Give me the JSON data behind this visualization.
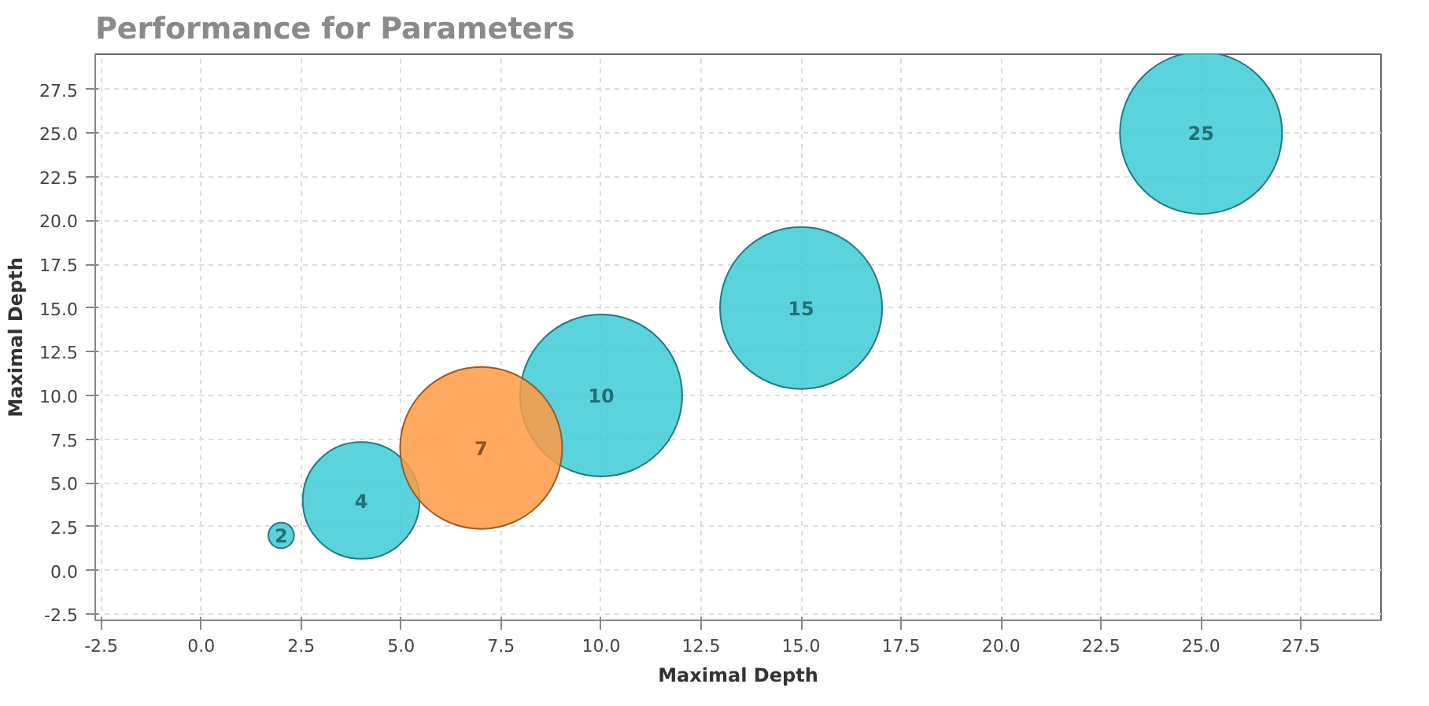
{
  "chart_data": {
    "type": "bubble",
    "title": "Performance for Parameters",
    "xlabel": "Maximal Depth",
    "ylabel": "Maximal Depth",
    "xlim": [
      -2.65,
      29.5
    ],
    "ylim": [
      -2.85,
      29.5
    ],
    "xticks": [
      {
        "value": -2.5,
        "label": "-2.5"
      },
      {
        "value": 0,
        "label": "0.0"
      },
      {
        "value": 2.5,
        "label": "2.5"
      },
      {
        "value": 5,
        "label": "5.0"
      },
      {
        "value": 7.5,
        "label": "7.5"
      },
      {
        "value": 10,
        "label": "10.0"
      },
      {
        "value": 12.5,
        "label": "12.5"
      },
      {
        "value": 15,
        "label": "15.0"
      },
      {
        "value": 17.5,
        "label": "17.5"
      },
      {
        "value": 20,
        "label": "20.0"
      },
      {
        "value": 22.5,
        "label": "22.5"
      },
      {
        "value": 25,
        "label": "25.0"
      },
      {
        "value": 27.5,
        "label": "27.5"
      }
    ],
    "yticks": [
      {
        "value": -2.5,
        "label": "-2.5"
      },
      {
        "value": 0,
        "label": "0.0"
      },
      {
        "value": 2.5,
        "label": "2.5"
      },
      {
        "value": 5,
        "label": "5.0"
      },
      {
        "value": 7.5,
        "label": "7.5"
      },
      {
        "value": 10,
        "label": "10.0"
      },
      {
        "value": 12.5,
        "label": "12.5"
      },
      {
        "value": 15,
        "label": "15.0"
      },
      {
        "value": 17.5,
        "label": "17.5"
      },
      {
        "value": 20,
        "label": "20.0"
      },
      {
        "value": 22.5,
        "label": "22.5"
      },
      {
        "value": 25,
        "label": "25.0"
      },
      {
        "value": 27.5,
        "label": "27.5"
      }
    ],
    "grid": true,
    "data_labels": true,
    "series": [
      {
        "color": "#3ecbd6",
        "x": [
          2,
          4,
          10,
          15,
          25
        ],
        "values": [
          2,
          4,
          10,
          15,
          25
        ],
        "sizes": [
          0.025,
          0.52,
          1,
          1,
          1
        ]
      },
      {
        "color": "#ff9a45",
        "x": [
          7
        ],
        "values": [
          7
        ],
        "sizes": [
          1
        ]
      }
    ]
  }
}
